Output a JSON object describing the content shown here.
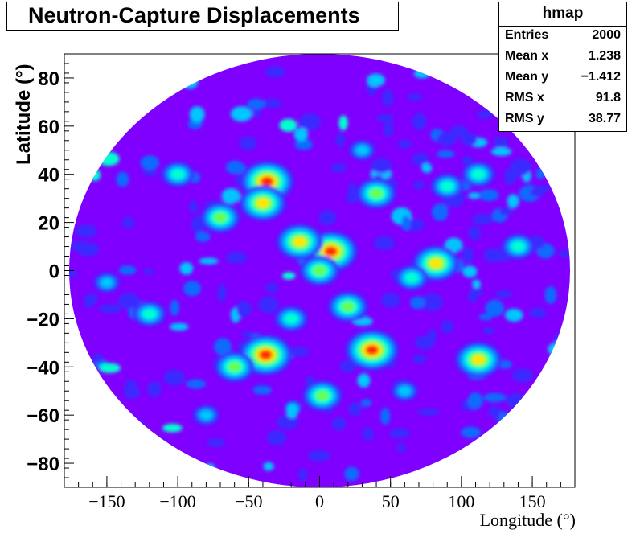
{
  "title": "Neutron-Capture Displacements",
  "stats": {
    "name": "hmap",
    "rows": [
      {
        "label": "Entries",
        "value": "2000"
      },
      {
        "label": "Mean x",
        "value": "1.238"
      },
      {
        "label": "Mean y",
        "value": "−1.412"
      },
      {
        "label": "RMS x",
        "value": "91.8"
      },
      {
        "label": "RMS y",
        "value": "38.77"
      }
    ]
  },
  "colors": {
    "background_level": "#7f00ff",
    "levels": [
      "#7f00ff",
      "#3a2bff",
      "#0a6cff",
      "#00c6ff",
      "#00ffd0",
      "#66ff4a",
      "#ffe600",
      "#ff2a00"
    ]
  },
  "chart_data": {
    "type": "heatmap",
    "projection": "sinusoidal (Sanson-Flamsteed) sky map, contour-filled",
    "xlabel": "Longitude (°)",
    "ylabel": "Latitude (°)",
    "xlim": [
      -180,
      180
    ],
    "ylim": [
      -90,
      90
    ],
    "x_ticks": [
      -150,
      -100,
      -50,
      0,
      50,
      100,
      150
    ],
    "x_tick_labels": [
      "−150",
      "−100",
      "−50",
      "0",
      "50",
      "100",
      "150"
    ],
    "y_ticks": [
      -80,
      -60,
      -40,
      -20,
      0,
      20,
      40,
      60,
      80
    ],
    "y_tick_labels": [
      "−80",
      "−60",
      "−40",
      "−20",
      "0",
      "20",
      "40",
      "60",
      "80"
    ],
    "hotspots": [
      {
        "lon": 8,
        "lat": 8,
        "level": 7
      },
      {
        "lon": 37,
        "lat": -33,
        "level": 7
      },
      {
        "lon": -38,
        "lat": -35,
        "level": 7
      },
      {
        "lon": -37,
        "lat": 37,
        "level": 7
      },
      {
        "lon": 112,
        "lat": -37,
        "level": 6
      },
      {
        "lon": 0,
        "lat": 0,
        "level": 5
      },
      {
        "lon": 20,
        "lat": -15,
        "level": 5
      },
      {
        "lon": -14,
        "lat": 12,
        "level": 6
      },
      {
        "lon": -40,
        "lat": 28,
        "level": 6
      },
      {
        "lon": 40,
        "lat": 32,
        "level": 5
      },
      {
        "lon": 82,
        "lat": 3,
        "level": 6
      },
      {
        "lon": -120,
        "lat": -18,
        "level": 4
      },
      {
        "lon": -70,
        "lat": 22,
        "level": 5
      },
      {
        "lon": 112,
        "lat": 40,
        "level": 4
      },
      {
        "lon": 2,
        "lat": -52,
        "level": 5
      },
      {
        "lon": -60,
        "lat": -40,
        "level": 5
      },
      {
        "lon": 65,
        "lat": -3,
        "level": 4
      },
      {
        "lon": 90,
        "lat": 35,
        "level": 4
      },
      {
        "lon": -100,
        "lat": 40,
        "level": 4
      },
      {
        "lon": 140,
        "lat": 10,
        "level": 4
      },
      {
        "lon": -150,
        "lat": -5,
        "level": 3
      },
      {
        "lon": 30,
        "lat": 50,
        "level": 3
      },
      {
        "lon": -20,
        "lat": -20,
        "level": 4
      },
      {
        "lon": 60,
        "lat": -50,
        "level": 3
      },
      {
        "lon": -80,
        "lat": -60,
        "level": 3
      }
    ]
  }
}
